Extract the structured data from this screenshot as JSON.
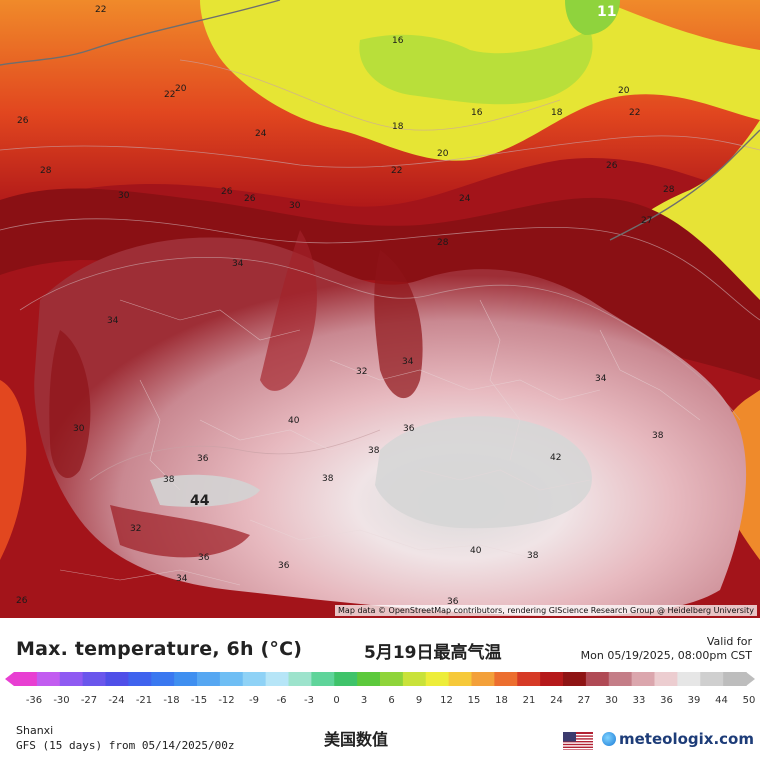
{
  "map": {
    "contour_labels": [
      {
        "text": "22"
      },
      {
        "text": "16"
      },
      {
        "text": "20"
      },
      {
        "text": "22"
      },
      {
        "text": "26"
      },
      {
        "text": "24"
      },
      {
        "text": "18"
      },
      {
        "text": "16"
      },
      {
        "text": "18"
      },
      {
        "text": "20"
      },
      {
        "text": "22"
      },
      {
        "text": "20"
      },
      {
        "text": "22"
      },
      {
        "text": "26"
      },
      {
        "text": "28"
      },
      {
        "text": "24"
      },
      {
        "text": "26"
      },
      {
        "text": "28"
      },
      {
        "text": "30"
      },
      {
        "text": "26"
      },
      {
        "text": "27"
      },
      {
        "text": "28"
      },
      {
        "text": "34"
      },
      {
        "text": "34"
      },
      {
        "text": "30"
      },
      {
        "text": "34"
      },
      {
        "text": "32"
      },
      {
        "text": "34"
      },
      {
        "text": "30"
      },
      {
        "text": "40"
      },
      {
        "text": "36"
      },
      {
        "text": "38"
      },
      {
        "text": "38"
      },
      {
        "text": "36"
      },
      {
        "text": "38"
      },
      {
        "text": "42"
      },
      {
        "text": "38"
      },
      {
        "text": "32"
      },
      {
        "text": "36"
      },
      {
        "text": "34"
      },
      {
        "text": "36"
      },
      {
        "text": "40"
      },
      {
        "text": "38"
      },
      {
        "text": "36"
      },
      {
        "text": "26"
      }
    ],
    "highlight_labels": [
      {
        "text": "11"
      },
      {
        "text": "44"
      }
    ],
    "attribution": "Map data © OpenStreetMap contributors, rendering GIScience Research Group @ Heidelberg University"
  },
  "footer": {
    "title": "Max. temperature, 6h (°C)",
    "title_cn": "5月19日最高气温",
    "valid_label": "Valid for",
    "valid_time": "Mon 05/19/2025, 08:00pm CST",
    "region": "Shanxi",
    "model": "GFS (15 days) from 05/14/2025/00z",
    "subtitle_cn": "美国数值",
    "brand": "meteologix.com",
    "flag": "us-flag-icon"
  },
  "colorbar": {
    "ticks": [
      "-36",
      "-30",
      "-27",
      "-24",
      "-21",
      "-18",
      "-15",
      "-12",
      "-9",
      "-6",
      "-3",
      "0",
      "3",
      "6",
      "9",
      "12",
      "15",
      "18",
      "21",
      "24",
      "27",
      "30",
      "33",
      "36",
      "39",
      "44",
      "50"
    ],
    "stops": [
      "#e83fd2",
      "#c25cf0",
      "#8f5af2",
      "#6a56ec",
      "#4f4fe8",
      "#3f63ee",
      "#3a78f0",
      "#3f8ff0",
      "#56a7f2",
      "#6fbef4",
      "#8fd2f6",
      "#b6e5f7",
      "#9de3cc",
      "#5fd49a",
      "#3fc36a",
      "#5cc93c",
      "#8fd43a",
      "#c9e23a",
      "#eded3a",
      "#f6c93a",
      "#f3a03a",
      "#ec6e2f",
      "#d63a26",
      "#b5191a",
      "#8e1414",
      "#b04a55",
      "#c47d87",
      "#dba6ad",
      "#eccdd0",
      "#e6e6e6",
      "#cfcfcf",
      "#bdbdbd"
    ]
  }
}
